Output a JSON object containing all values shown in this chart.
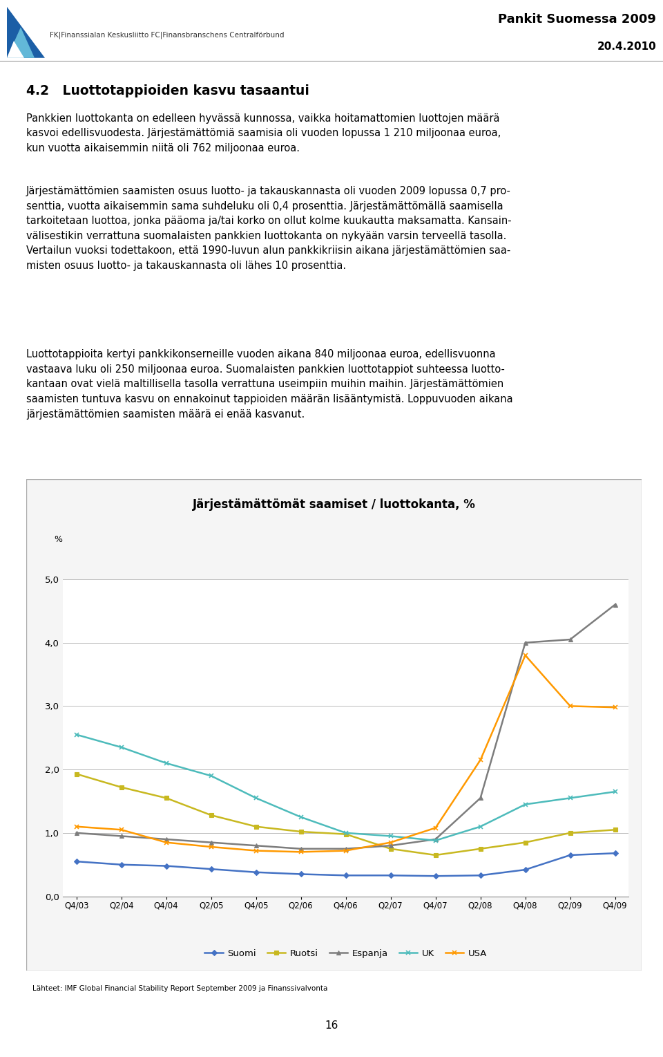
{
  "title": "Järjestämättömät saamiset / luottokanta, %",
  "ylabel": "%",
  "source_text": "Lähteet: IMF Global Financial Stability Report September 2009 ja Finanssivalvonta",
  "header_title": "Pankit Suomessa 2009",
  "header_date": "20.4.2010",
  "section_title": "4.2   Luottotappioiden kasvu tasaantui",
  "page_number": "16",
  "logo_text": "FK|Finanssialan Keskusliitto FC|Finansbranschens Centralförbund",
  "x_labels": [
    "Q4/03",
    "Q2/04",
    "Q4/04",
    "Q2/05",
    "Q4/05",
    "Q2/06",
    "Q4/06",
    "Q2/07",
    "Q4/07",
    "Q2/08",
    "Q4/08",
    "Q2/09",
    "Q4/09"
  ],
  "ylim": [
    0.0,
    5.0
  ],
  "yticks": [
    0.0,
    1.0,
    2.0,
    3.0,
    4.0,
    5.0
  ],
  "series": {
    "Suomi": {
      "color": "#4472C4",
      "marker": "D",
      "markersize": 4,
      "values": [
        0.55,
        0.5,
        0.48,
        0.43,
        0.38,
        0.35,
        0.33,
        0.33,
        0.32,
        0.33,
        0.42,
        0.65,
        0.68
      ]
    },
    "Ruotsi": {
      "color": "#C8B820",
      "marker": "s",
      "markersize": 4,
      "values": [
        1.93,
        1.72,
        1.55,
        1.28,
        1.1,
        1.02,
        0.98,
        0.75,
        0.65,
        0.75,
        0.85,
        1.0,
        1.05
      ]
    },
    "Espanja": {
      "color": "#7D7D7D",
      "marker": "^",
      "markersize": 5,
      "values": [
        1.0,
        0.95,
        0.9,
        0.85,
        0.8,
        0.75,
        0.75,
        0.8,
        0.9,
        1.55,
        4.0,
        4.05,
        4.6
      ]
    },
    "UK": {
      "color": "#4DBBBB",
      "marker": "x",
      "markersize": 5,
      "values": [
        2.55,
        2.35,
        2.1,
        1.9,
        1.55,
        1.25,
        1.0,
        0.95,
        0.88,
        1.1,
        1.45,
        1.55,
        1.65
      ]
    },
    "USA": {
      "color": "#FF9900",
      "marker": "x",
      "markersize": 5,
      "values": [
        1.1,
        1.05,
        0.85,
        0.78,
        0.72,
        0.7,
        0.72,
        0.85,
        1.08,
        2.15,
        3.8,
        3.0,
        2.98
      ]
    }
  },
  "para1": "Pankkien luottokanta on edelleen hyvässä kunnossa, vaikka hoitamattomien luottojen määrä kasvoi edellisvuodesta. Järjestämättömiä saamisia oli vuoden lopussa 1 210 miljoonaa euroa, kun vuotta aikaisemmin niitä oli 762 miljoonaa euroa.",
  "para2": "Järjestämättömien saamisten osuus luotto- ja takauskannasta oli vuoden 2009 lopussa 0,7 pro-senttia, vuotta aikaisemmin sama suhdeluku oli 0,4 prosenttia. Järjestämättömällä saamisella tarkoitetaan luottoa, jonka pääoma ja/tai korko on ollut kolme kuukautta maksamatta. Kansain-välisestikin verrattuna suomalaisten pankkien luottokanta on nykyään varsin terveellä tasolla. Vertailun vuoksi todettakoon, että 1990-luvun alun pankkikriisin aikana järjestämättömien saa-misten osuus luotto- ja takauskannasta oli lähes 10 prosenttia.",
  "para3": "Luottotappioita kertyi pankkikonserneille vuoden aikana 840 miljoonaa euroa, edellisvuonna vastaava luku oli 250 miljoonaa euroa. Suomalaisten pankkien luottotappiot suhteessa luotto-kantaan ovat vielä maltillisella tasolla verrattuna useimpiin muihin maihin. Järjestämättömien saamisten tuntuva kasvu on ennakoinut tappioiden määrän lisääntymistä. Loppuvuoden aikana järjestämättömien saamisten määrä ei enää kasvanut."
}
